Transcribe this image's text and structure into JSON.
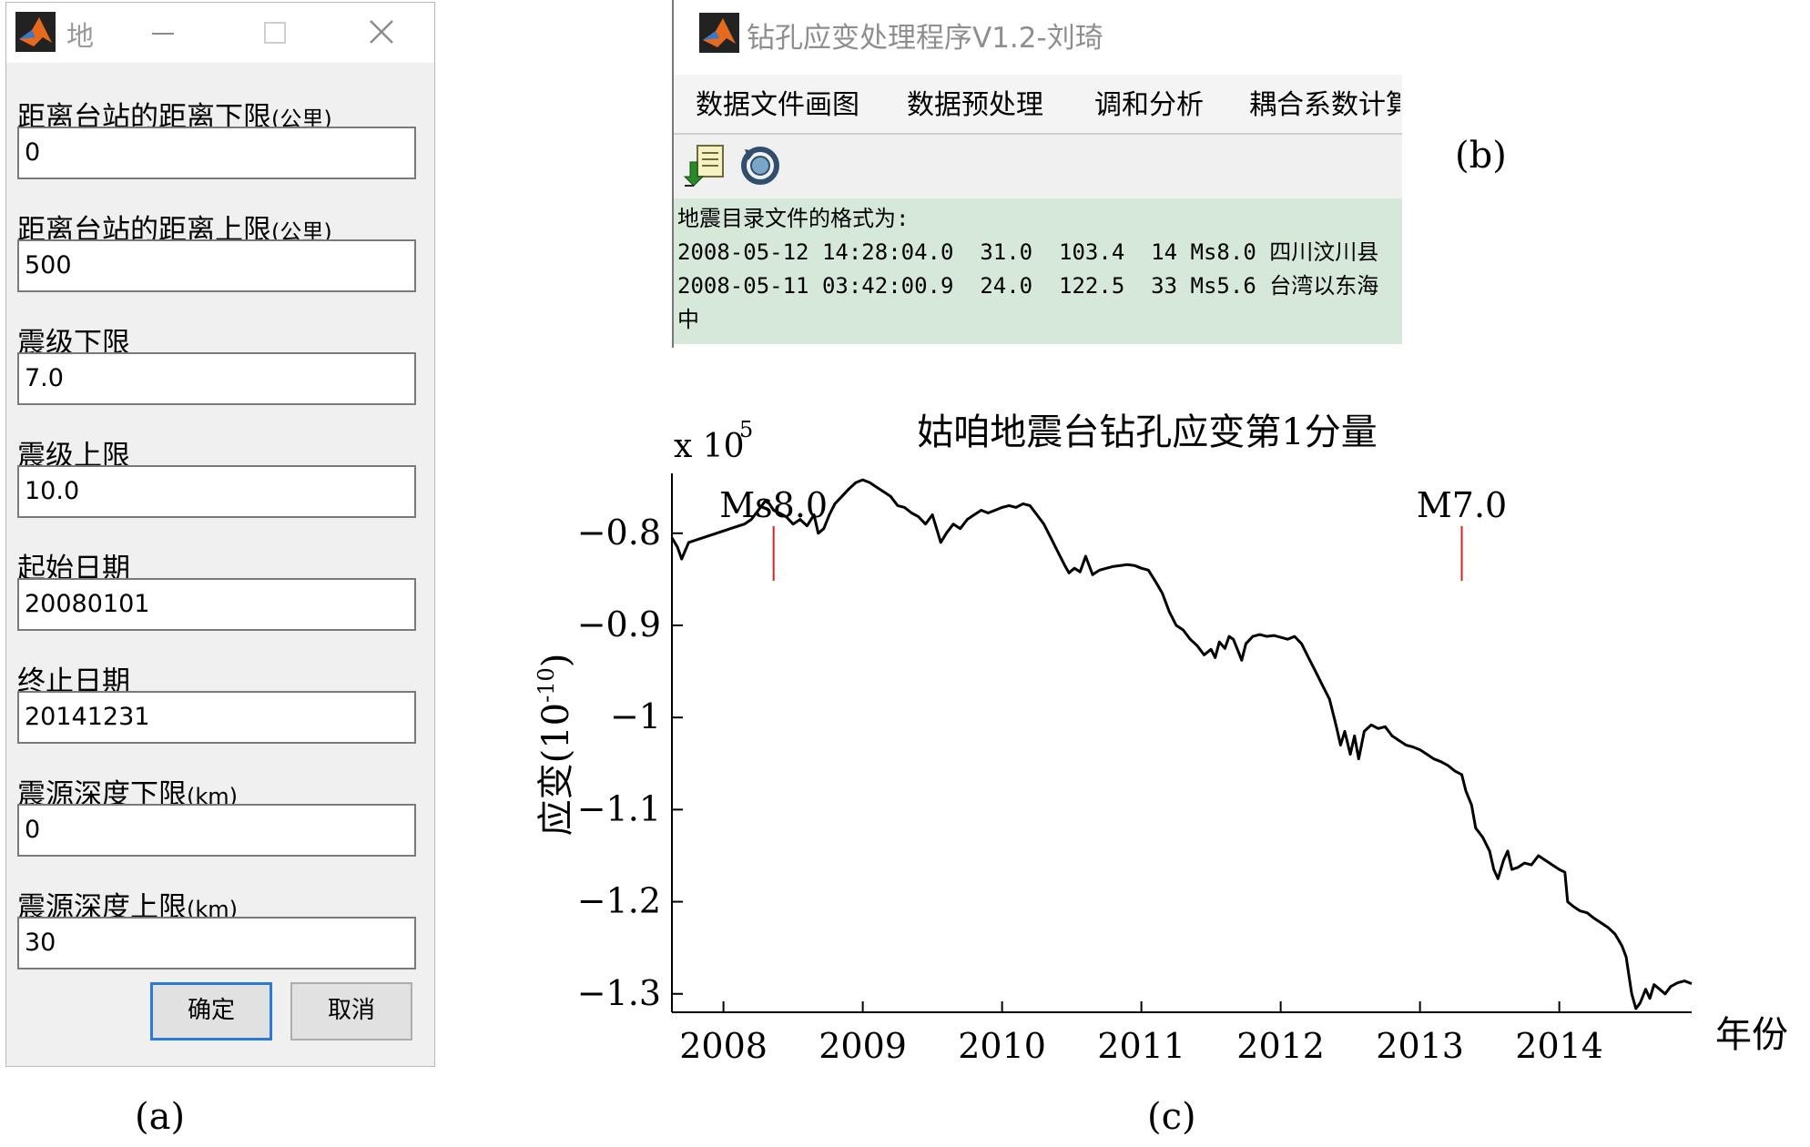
{
  "dialog": {
    "title": "地",
    "fields": [
      {
        "label": "距离台站的距离下限",
        "unit": "(公里)",
        "value": "0"
      },
      {
        "label": "距离台站的距离上限",
        "unit": "(公里)",
        "value": "500"
      },
      {
        "label": "震级下限",
        "unit": "",
        "value": "7.0"
      },
      {
        "label": "震级上限",
        "unit": "",
        "value": "10.0"
      },
      {
        "label": "起始日期",
        "unit": "",
        "value": "20080101"
      },
      {
        "label": "终止日期",
        "unit": "",
        "value": "20141231"
      },
      {
        "label": "震源深度下限",
        "unit": "(km)",
        "value": "0"
      },
      {
        "label": "震源深度上限",
        "unit": "(km)",
        "value": "30"
      }
    ],
    "ok_label": "确定",
    "cancel_label": "取消"
  },
  "main_window": {
    "title": "钻孔应变处理程序V1.2-刘琦",
    "menu": [
      "数据文件画图",
      "数据预处理",
      "调和分析",
      "耦合系数计算"
    ],
    "text_lines": [
      "地震目录文件的格式为:",
      "2008-05-12 14:28:04.0  31.0  103.4  14 Ms8.0 四川汶川县",
      "2008-05-11 03:42:00.9  24.0  122.5  33 Ms5.6 台湾以东海",
      "中"
    ]
  },
  "captions": {
    "a": "(a)",
    "b": "(b)",
    "c": "(c)"
  },
  "colors": {
    "text_bg": "#d6e8da",
    "event_marker": "#e02020",
    "line": "#000000"
  },
  "chart_data": {
    "type": "line",
    "title": "姑咱地震台钻孔应变第1分量",
    "xlabel": "年份",
    "ylabel": "应变(10",
    "ylabel_exp": "-10",
    "ylabel_close": ")",
    "scale_label": "x 10",
    "scale_exp": "5",
    "xlim": [
      2007.63,
      2014.95
    ],
    "ylim": [
      -1.32,
      -0.735
    ],
    "x_ticks": [
      2008,
      2009,
      2010,
      2011,
      2012,
      2013,
      2014
    ],
    "y_ticks": [
      -0.8,
      -0.9,
      -1,
      -1.1,
      -1.2,
      -1.3
    ],
    "y_tick_labels": [
      "−0.8",
      "−0.9",
      "−1",
      "−1.1",
      "−1.2",
      "−1.3"
    ],
    "annotations": [
      {
        "label": "Ms8.0",
        "x": 2008.36
      },
      {
        "label": "M7.0",
        "x": 2013.3
      }
    ],
    "series": [
      {
        "x": [
          2007.63,
          2007.67,
          2007.7,
          2007.75,
          2007.85,
          2007.95,
          2008.05,
          2008.15,
          2008.2,
          2008.25,
          2008.3,
          2008.33,
          2008.36,
          2008.4,
          2008.45,
          2008.5,
          2008.55,
          2008.6,
          2008.65,
          2008.68,
          2008.72,
          2008.76,
          2008.8,
          2008.85,
          2008.9,
          2008.95,
          2009.0,
          2009.05,
          2009.1,
          2009.15,
          2009.2,
          2009.25,
          2009.3,
          2009.35,
          2009.4,
          2009.45,
          2009.5,
          2009.53,
          2009.56,
          2009.6,
          2009.65,
          2009.7,
          2009.75,
          2009.8,
          2009.85,
          2009.9,
          2009.95,
          2010.0,
          2010.05,
          2010.1,
          2010.15,
          2010.2,
          2010.25,
          2010.3,
          2010.35,
          2010.4,
          2010.45,
          2010.48,
          2010.52,
          2010.56,
          2010.6,
          2010.65,
          2010.7,
          2010.75,
          2010.8,
          2010.85,
          2010.9,
          2010.95,
          2011.0,
          2011.05,
          2011.1,
          2011.15,
          2011.2,
          2011.25,
          2011.3,
          2011.35,
          2011.4,
          2011.45,
          2011.5,
          2011.53,
          2011.56,
          2011.6,
          2011.63,
          2011.66,
          2011.7,
          2011.72,
          2011.75,
          2011.8,
          2011.85,
          2011.9,
          2011.95,
          2012.0,
          2012.05,
          2012.1,
          2012.15,
          2012.2,
          2012.25,
          2012.3,
          2012.35,
          2012.4,
          2012.43,
          2012.46,
          2012.5,
          2012.53,
          2012.56,
          2012.6,
          2012.65,
          2012.7,
          2012.75,
          2012.8,
          2012.85,
          2012.9,
          2012.95,
          2013.0,
          2013.05,
          2013.1,
          2013.15,
          2013.2,
          2013.25,
          2013.3,
          2013.33,
          2013.37,
          2013.4,
          2013.45,
          2013.5,
          2013.53,
          2013.56,
          2013.6,
          2013.63,
          2013.66,
          2013.7,
          2013.75,
          2013.8,
          2013.85,
          2013.9,
          2013.95,
          2014.0,
          2014.04,
          2014.06,
          2014.1,
          2014.15,
          2014.2,
          2014.25,
          2014.3,
          2014.35,
          2014.4,
          2014.45,
          2014.48,
          2014.5,
          2014.52,
          2014.55,
          2014.58,
          2014.62,
          2014.65,
          2014.68,
          2014.72,
          2014.76,
          2014.8,
          2014.85,
          2014.9,
          2014.95
        ],
        "values": [
          -0.805,
          -0.815,
          -0.828,
          -0.81,
          -0.805,
          -0.8,
          -0.795,
          -0.79,
          -0.785,
          -0.775,
          -0.765,
          -0.768,
          -0.775,
          -0.778,
          -0.782,
          -0.79,
          -0.785,
          -0.792,
          -0.78,
          -0.8,
          -0.795,
          -0.78,
          -0.768,
          -0.76,
          -0.752,
          -0.745,
          -0.742,
          -0.745,
          -0.75,
          -0.755,
          -0.76,
          -0.77,
          -0.772,
          -0.778,
          -0.782,
          -0.79,
          -0.78,
          -0.795,
          -0.81,
          -0.8,
          -0.79,
          -0.795,
          -0.785,
          -0.78,
          -0.775,
          -0.778,
          -0.775,
          -0.772,
          -0.77,
          -0.772,
          -0.768,
          -0.77,
          -0.78,
          -0.79,
          -0.805,
          -0.82,
          -0.835,
          -0.843,
          -0.838,
          -0.842,
          -0.825,
          -0.845,
          -0.84,
          -0.838,
          -0.836,
          -0.835,
          -0.834,
          -0.835,
          -0.838,
          -0.84,
          -0.852,
          -0.865,
          -0.885,
          -0.9,
          -0.905,
          -0.915,
          -0.922,
          -0.932,
          -0.926,
          -0.935,
          -0.918,
          -0.925,
          -0.912,
          -0.915,
          -0.93,
          -0.938,
          -0.92,
          -0.912,
          -0.91,
          -0.912,
          -0.911,
          -0.913,
          -0.915,
          -0.912,
          -0.92,
          -0.935,
          -0.95,
          -0.965,
          -0.98,
          -1.01,
          -1.03,
          -1.015,
          -1.04,
          -1.02,
          -1.045,
          -1.015,
          -1.008,
          -1.012,
          -1.01,
          -1.02,
          -1.025,
          -1.03,
          -1.032,
          -1.035,
          -1.04,
          -1.045,
          -1.048,
          -1.052,
          -1.058,
          -1.062,
          -1.08,
          -1.095,
          -1.12,
          -1.13,
          -1.145,
          -1.165,
          -1.175,
          -1.155,
          -1.145,
          -1.165,
          -1.163,
          -1.158,
          -1.16,
          -1.15,
          -1.155,
          -1.16,
          -1.165,
          -1.168,
          -1.2,
          -1.205,
          -1.21,
          -1.212,
          -1.218,
          -1.223,
          -1.228,
          -1.235,
          -1.248,
          -1.26,
          -1.28,
          -1.3,
          -1.316,
          -1.31,
          -1.295,
          -1.305,
          -1.29,
          -1.295,
          -1.3,
          -1.292,
          -1.288,
          -1.286,
          -1.289
        ]
      }
    ]
  }
}
